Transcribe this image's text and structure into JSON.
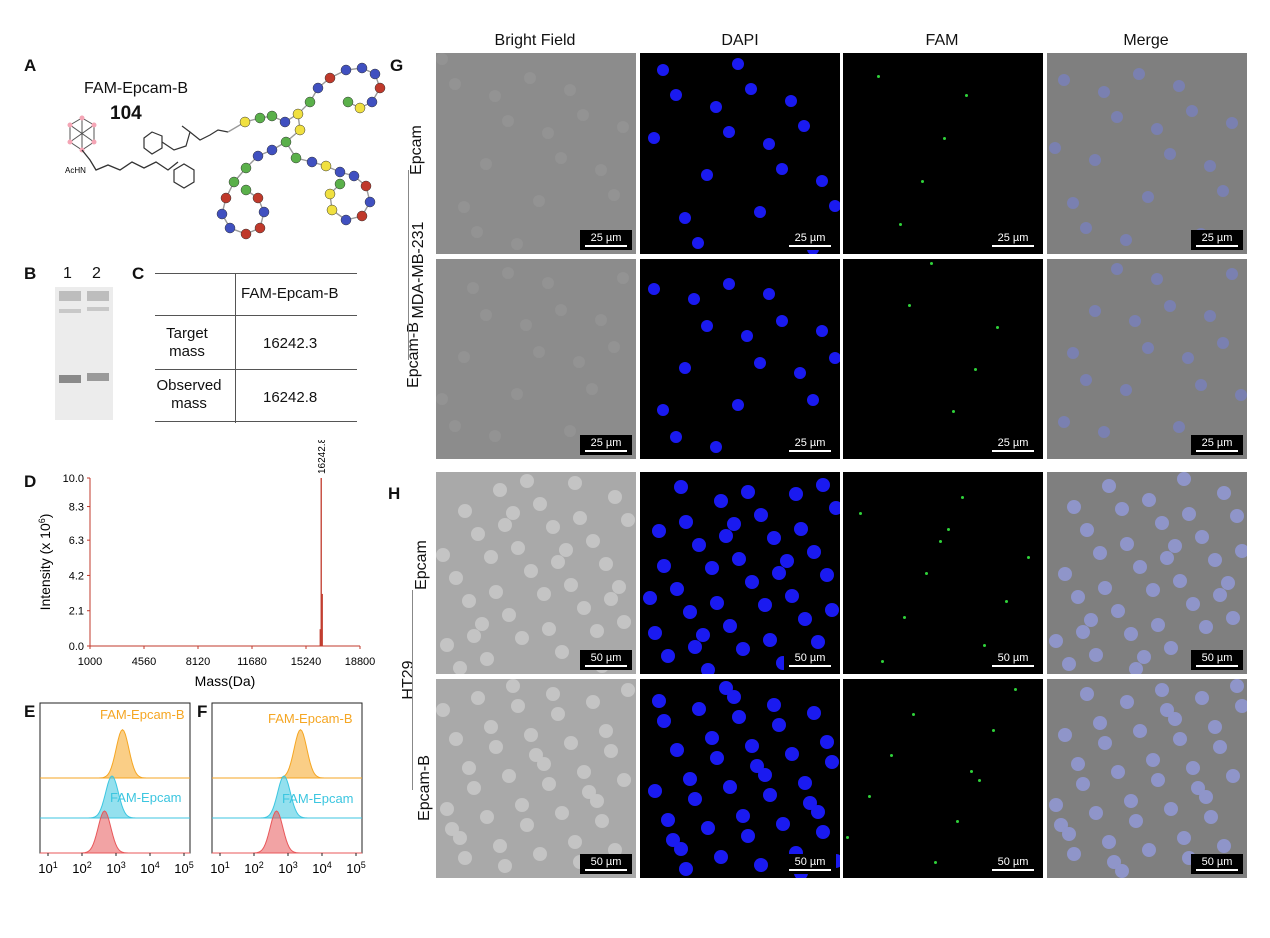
{
  "panels": {
    "A": "A",
    "B": "B",
    "C": "C",
    "D": "D",
    "E": "E",
    "F": "F",
    "G": "G",
    "H": "H"
  },
  "panel_a": {
    "name": "FAM-Epcam-B",
    "number": "104",
    "achn": "AcHN"
  },
  "panel_b": {
    "lane1": "1",
    "lane2": "2"
  },
  "panel_c": {
    "header": "FAM-Epcam-B",
    "rows": [
      {
        "label_line1": "Target",
        "label_line2": "mass",
        "value": "16242.3"
      },
      {
        "label_line1": "Observed",
        "label_line2": "mass",
        "value": "16242.8"
      }
    ]
  },
  "chart_data": [
    {
      "type": "bar",
      "panel": "D",
      "xlabel": "Mass(Da)",
      "ylabel": "Intensity (x 10^6)",
      "x_ticks": [
        "1000",
        "4560",
        "8120",
        "11680",
        "15240",
        "18800"
      ],
      "y_ticks": [
        "0.0",
        "2.1",
        "4.2",
        "6.3",
        "8.3",
        "10.0"
      ],
      "xlim": [
        1000,
        18800
      ],
      "ylim": [
        0,
        10
      ],
      "peaks": [
        {
          "x": 16180,
          "y": 1.0
        },
        {
          "x": 16242.8,
          "y": 10.0
        },
        {
          "x": 16310,
          "y": 3.1
        }
      ],
      "peak_label": "16242.8",
      "color": "#c0392b"
    },
    {
      "type": "area",
      "panel": "E",
      "series": [
        {
          "name": "FAM-Epcam-B",
          "color": "#f5a623"
        },
        {
          "name": "FAM-Epcam",
          "color": "#3cc6e0"
        },
        {
          "color": "#e8575a"
        }
      ],
      "x_ticks": [
        "10^1",
        "10^2",
        "10^3",
        "10^4",
        "10^5"
      ]
    },
    {
      "type": "area",
      "panel": "F",
      "series": [
        {
          "name": "FAM-Epcam-B",
          "color": "#f5a623"
        },
        {
          "name": "FAM-Epcam",
          "color": "#3cc6e0"
        },
        {
          "color": "#e8575a"
        }
      ],
      "x_ticks": [
        "10^1",
        "10^2",
        "10^3",
        "10^4",
        "10^5"
      ]
    }
  ],
  "microscopy": {
    "columns": [
      "Bright Field",
      "DAPI",
      "FAM",
      "Merge"
    ],
    "g_cell_line": "MDA-MB-231",
    "g_rows": [
      "Epcam",
      "Epcam-B"
    ],
    "h_cell_line": "HT29",
    "h_rows": [
      "Epcam",
      "Epcam-B"
    ],
    "scale_g": "25 µm",
    "scale_h": "50 µm"
  }
}
